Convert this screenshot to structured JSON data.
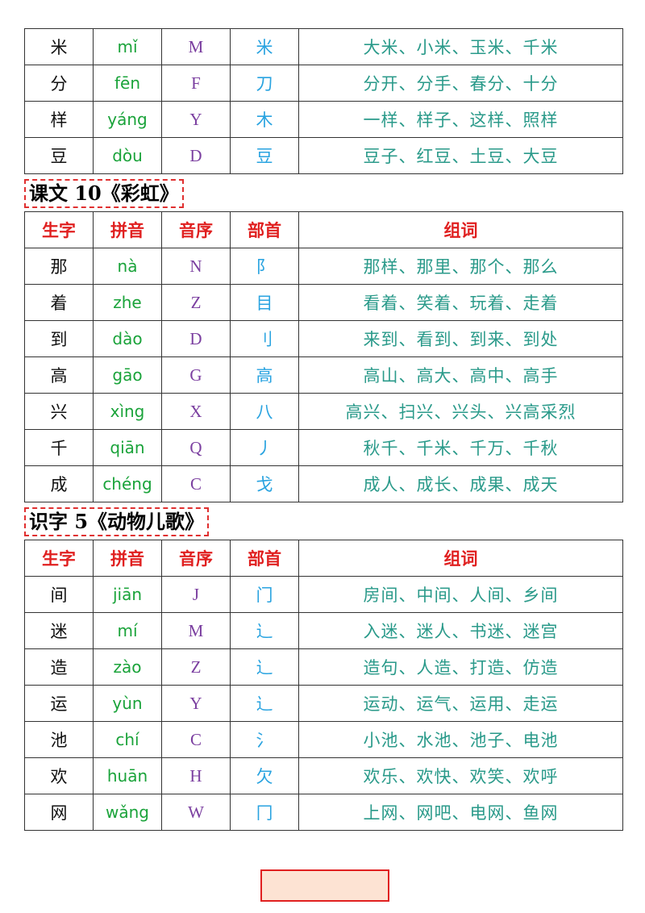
{
  "tables": [
    {
      "rows": [
        [
          "米",
          "mǐ",
          "M",
          "米",
          "大米、小米、玉米、千米"
        ],
        [
          "分",
          "fēn",
          "F",
          "刀",
          "分开、分手、春分、十分"
        ],
        [
          "样",
          "yáng",
          "Y",
          "木",
          "一样、样子、这样、照样"
        ],
        [
          "豆",
          "dòu",
          "D",
          "豆",
          "豆子、红豆、土豆、大豆"
        ]
      ]
    },
    {
      "title": "课文 10《彩虹》",
      "header": [
        "生字",
        "拼音",
        "音序",
        "部首",
        "组词"
      ],
      "rows": [
        [
          "那",
          "nà",
          "N",
          "阝",
          "那样、那里、那个、那么"
        ],
        [
          "着",
          "zhe",
          "Z",
          "目",
          "看着、笑着、玩着、走着"
        ],
        [
          "到",
          "dào",
          "D",
          "刂",
          "来到、看到、到来、到处"
        ],
        [
          "高",
          "gāo",
          "G",
          "高",
          "高山、高大、高中、高手"
        ],
        [
          "兴",
          "xìng",
          "X",
          "八",
          "高兴、扫兴、兴头、兴高采烈"
        ],
        [
          "千",
          "qiān",
          "Q",
          "丿",
          "秋千、千米、千万、千秋"
        ],
        [
          "成",
          "chéng",
          "C",
          "戈",
          "成人、成长、成果、成天"
        ]
      ]
    },
    {
      "title": "识字 5《动物儿歌》",
      "header": [
        "生字",
        "拼音",
        "音序",
        "部首",
        "组词"
      ],
      "rows": [
        [
          "间",
          "jiān",
          "J",
          "门",
          "房间、中间、人间、乡间"
        ],
        [
          "迷",
          "mí",
          "M",
          "辶",
          "入迷、迷人、书迷、迷宫"
        ],
        [
          "造",
          "zào",
          "Z",
          "辶",
          "造句、人造、打造、仿造"
        ],
        [
          "运",
          "yùn",
          "Y",
          "辶",
          "运动、运气、运用、走运"
        ],
        [
          "池",
          "chí",
          "C",
          "氵",
          "小池、水池、池子、电池"
        ],
        [
          "欢",
          "huān",
          "H",
          "欠",
          "欢乐、欢快、欢笑、欢呼"
        ],
        [
          "网",
          "wǎng",
          "W",
          "冂",
          "上网、网吧、电网、鱼网"
        ]
      ]
    }
  ]
}
